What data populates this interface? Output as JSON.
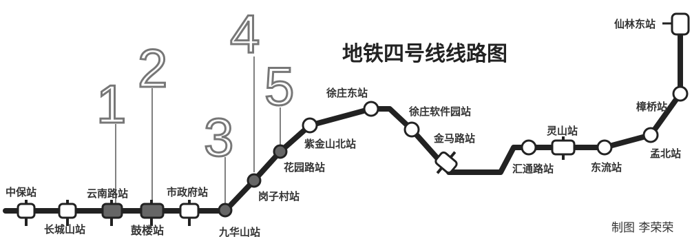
{
  "title": "地铁四号线线路图",
  "credit": "制图 李荣荣",
  "colors": {
    "line": "#222222",
    "station_fill": "#ffffff",
    "highlight_fill": "#666666",
    "callout_number": "#888888"
  },
  "stations": [
    {
      "id": "zhongbao",
      "name": "中保站",
      "type": "interchange"
    },
    {
      "id": "changcheng",
      "name": "长城山站",
      "type": "interchange"
    },
    {
      "id": "yunnan",
      "name": "云南路站",
      "type": "interchange",
      "highlight": true
    },
    {
      "id": "gulou",
      "name": "鼓楼站",
      "type": "interchange",
      "highlight": true
    },
    {
      "id": "shizhengfu",
      "name": "市政府站",
      "type": "interchange"
    },
    {
      "id": "jiuhuashan",
      "name": "九华山站",
      "type": "circle",
      "highlight": true
    },
    {
      "id": "gangzicun",
      "name": "岗子村站",
      "type": "circle",
      "highlight": true
    },
    {
      "id": "huayuanlu",
      "name": "花园路站",
      "type": "circle",
      "highlight": true
    },
    {
      "id": "zijinshanbei",
      "name": "紫金山北站",
      "type": "circle"
    },
    {
      "id": "xiaoqiaodong",
      "name": "徐庄东站",
      "type": "circle"
    },
    {
      "id": "xuzhuangruanjian",
      "name": "徐庄软件园站",
      "type": "circle"
    },
    {
      "id": "jinmalu",
      "name": "金马路站",
      "type": "interchange"
    },
    {
      "id": "huitonglu",
      "name": "汇通路站",
      "type": "circle"
    },
    {
      "id": "lingshan",
      "name": "灵山站",
      "type": "interchange"
    },
    {
      "id": "dongliu",
      "name": "东流站",
      "type": "circle"
    },
    {
      "id": "menglong",
      "name": "孟北站",
      "type": "circle"
    },
    {
      "id": "chengqiao",
      "name": "樟桥站",
      "type": "circle"
    },
    {
      "id": "xianlindong",
      "name": "仙林东站",
      "type": "interchange"
    }
  ],
  "callouts": [
    {
      "number": "1",
      "station": "yunnan"
    },
    {
      "number": "2",
      "station": "gulou"
    },
    {
      "number": "3",
      "station": "jiuhuashan"
    },
    {
      "number": "4",
      "station": "gangzicun"
    },
    {
      "number": "5",
      "station": "huayuanlu"
    }
  ]
}
